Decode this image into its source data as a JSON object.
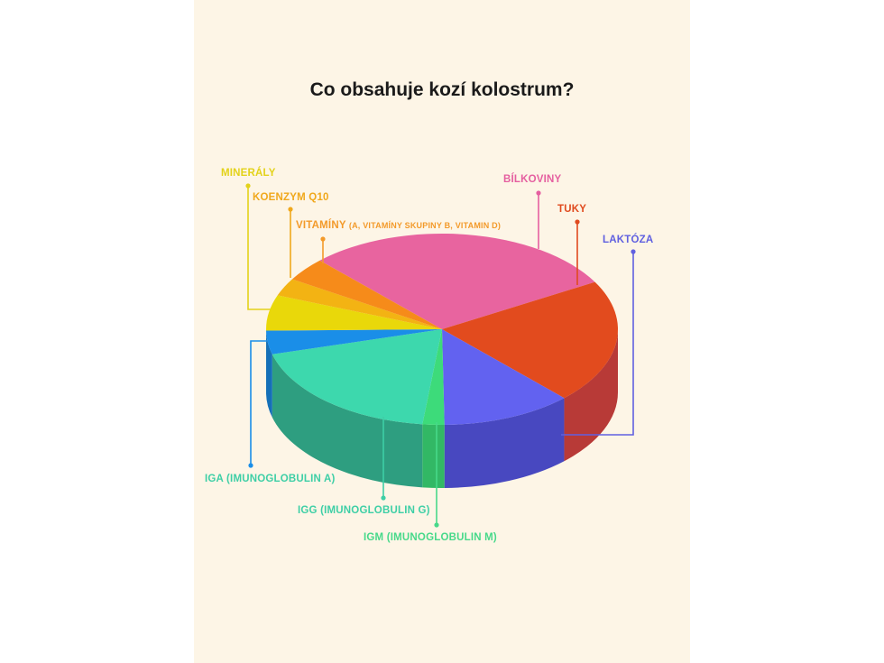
{
  "chart_data": {
    "type": "pie",
    "style": "3d",
    "title": "Co obsahuje kozí kolostrum?",
    "grid": false,
    "legend": "leader-line labels",
    "series": [
      {
        "name": "BÍLKOVINY",
        "value": 29,
        "color": "#e8649f",
        "side": "#c04e82"
      },
      {
        "name": "TUKY",
        "value": 21,
        "color": "#e24b1e",
        "side": "#b83a37"
      },
      {
        "name": "LAKTÓZA",
        "value": 12,
        "color": "#6262f0",
        "side": "#4848c0"
      },
      {
        "name": "IGM (IMUNOGLOBULIN M)",
        "value": 2,
        "color": "#3ddb7a",
        "side": "#32b865"
      },
      {
        "name": "IGG (IMUNOGLOBULIN G)",
        "value": 19,
        "color": "#3dd8ad",
        "side": "#2e9e80"
      },
      {
        "name": "IGA (IMUNOGLOBULIN A)",
        "value": 4,
        "color": "#1a8ee8",
        "side": "#1570b8"
      },
      {
        "name": "MINERÁLY",
        "value": 6,
        "color": "#e9d80a",
        "side": "#c0b208"
      },
      {
        "name": "KOENZYM Q10",
        "value": 3,
        "color": "#f3b313",
        "side": "#c99310"
      },
      {
        "name": "VITAMÍNY",
        "subtitle": "(A, VITAMÍNY SKUPINY B, VITAMIN D)",
        "value": 4,
        "color": "#f68b1a",
        "side": "#cc7015"
      }
    ]
  }
}
